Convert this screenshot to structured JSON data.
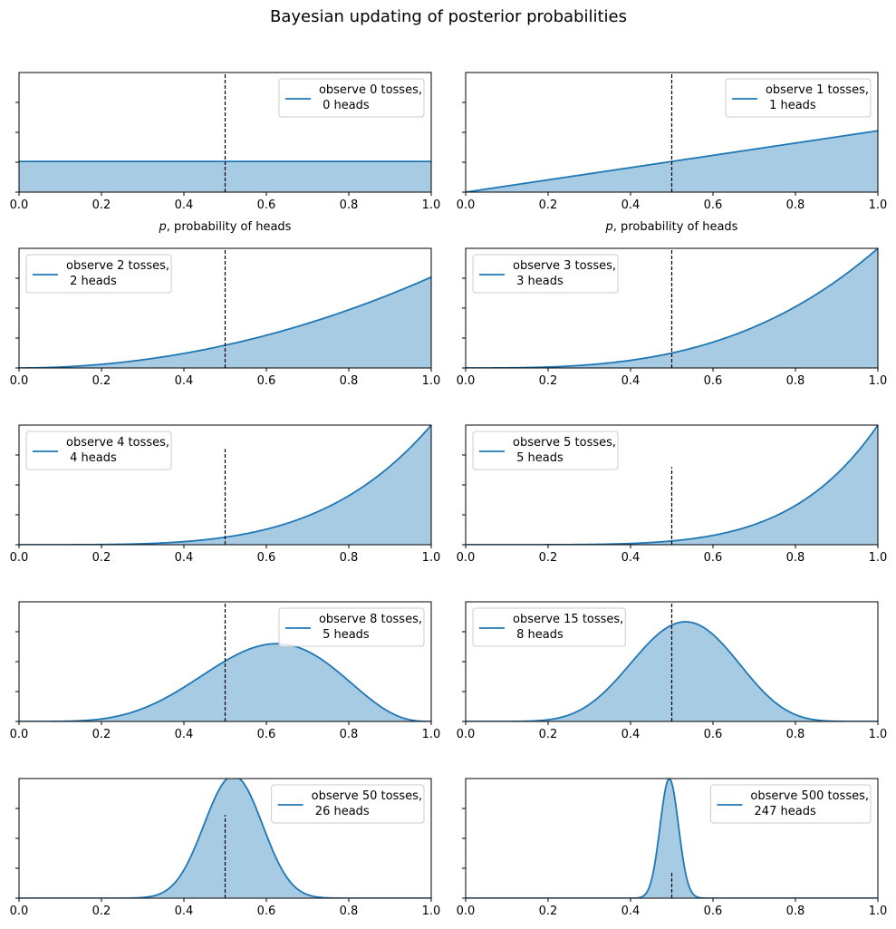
{
  "figure": {
    "title": "Bayesian updating of posterior probabilities"
  },
  "colors": {
    "line": "#1f77b4",
    "fill": "#a6cbe3",
    "vline": "#000000",
    "axes": "#000000",
    "legend_border": "#cccccc"
  },
  "chart_data": [
    {
      "type": "area",
      "trials": 0,
      "heads": 0,
      "legend": [
        "observe 0 tosses,",
        " 0 heads"
      ],
      "legend_loc": "upper right",
      "xlabel": "$p$, probability of heads",
      "xlim": [
        0,
        1
      ],
      "ylim": [
        0,
        3.9
      ],
      "vline_x": 0.5,
      "vline_top": 3.9,
      "xticks": [
        "0.0",
        "0.2",
        "0.4",
        "0.6",
        "0.8",
        "1.0"
      ],
      "ytick_labels": "hidden"
    },
    {
      "type": "area",
      "trials": 1,
      "heads": 1,
      "legend": [
        "observe 1 tosses,",
        " 1 heads"
      ],
      "legend_loc": "upper right",
      "xlabel": "$p$, probability of heads",
      "xlim": [
        0,
        1
      ],
      "ylim": [
        0,
        3.9
      ],
      "vline_x": 0.5,
      "vline_top": 3.9,
      "xticks": [
        "0.0",
        "0.2",
        "0.4",
        "0.6",
        "0.8",
        "1.0"
      ],
      "ytick_labels": "hidden"
    },
    {
      "type": "area",
      "trials": 2,
      "heads": 2,
      "legend": [
        "observe 2 tosses,",
        " 2 heads"
      ],
      "legend_loc": "upper left",
      "xlabel": "",
      "xlim": [
        0,
        1
      ],
      "ylim": [
        0,
        3.95
      ],
      "vline_x": 0.5,
      "vline_top": 3.95,
      "xticks": [
        "0.0",
        "0.2",
        "0.4",
        "0.6",
        "0.8",
        "1.0"
      ],
      "ytick_labels": "hidden"
    },
    {
      "type": "area",
      "trials": 3,
      "heads": 3,
      "legend": [
        "observe 3 tosses,",
        " 3 heads"
      ],
      "legend_loc": "upper left",
      "xlabel": "",
      "xlim": [
        0,
        1
      ],
      "ylim": [
        0,
        4.0
      ],
      "vline_x": 0.5,
      "vline_top": 4.0,
      "xticks": [
        "0.0",
        "0.2",
        "0.4",
        "0.6",
        "0.8",
        "1.0"
      ],
      "ytick_labels": "hidden"
    },
    {
      "type": "area",
      "trials": 4,
      "heads": 4,
      "legend": [
        "observe 4 tosses,",
        " 4 heads"
      ],
      "legend_loc": "upper left",
      "xlabel": "",
      "xlim": [
        0,
        1
      ],
      "ylim": [
        0,
        5.0
      ],
      "vline_x": 0.5,
      "vline_top": 4.0,
      "xticks": [
        "0.0",
        "0.2",
        "0.4",
        "0.6",
        "0.8",
        "1.0"
      ],
      "ytick_labels": "hidden"
    },
    {
      "type": "area",
      "trials": 5,
      "heads": 5,
      "legend": [
        "observe 5 tosses,",
        " 5 heads"
      ],
      "legend_loc": "upper left",
      "xlabel": "",
      "xlim": [
        0,
        1
      ],
      "ylim": [
        0,
        6.0
      ],
      "vline_x": 0.5,
      "vline_top": 3.9,
      "xticks": [
        "0.0",
        "0.2",
        "0.4",
        "0.6",
        "0.8",
        "1.0"
      ],
      "ytick_labels": "hidden"
    },
    {
      "type": "area",
      "trials": 8,
      "heads": 5,
      "legend": [
        "observe 8 tosses,",
        " 5 heads"
      ],
      "legend_loc": "upper right",
      "xlabel": "",
      "xlim": [
        0,
        1
      ],
      "ylim": [
        0,
        3.9
      ],
      "vline_x": 0.5,
      "vline_top": 3.9,
      "xticks": [
        "0.0",
        "0.2",
        "0.4",
        "0.6",
        "0.8",
        "1.0"
      ],
      "ytick_labels": "hidden"
    },
    {
      "type": "area",
      "trials": 15,
      "heads": 8,
      "legend": [
        "observe 15 tosses,",
        " 8 heads"
      ],
      "legend_loc": "upper left",
      "xlabel": "",
      "xlim": [
        0,
        1
      ],
      "ylim": [
        0,
        3.9
      ],
      "vline_x": 0.5,
      "vline_top": 3.9,
      "xticks": [
        "0.0",
        "0.2",
        "0.4",
        "0.6",
        "0.8",
        "1.0"
      ],
      "ytick_labels": "hidden"
    },
    {
      "type": "area",
      "trials": 50,
      "heads": 26,
      "legend": [
        "observe 50 tosses,",
        " 26 heads"
      ],
      "legend_loc": "upper right",
      "xlabel": "",
      "xlim": [
        0,
        1
      ],
      "ylim": [
        0,
        5.6
      ],
      "vline_x": 0.5,
      "vline_top": 3.9,
      "xticks": [
        "0.0",
        "0.2",
        "0.4",
        "0.6",
        "0.8",
        "1.0"
      ],
      "ytick_labels": "hidden"
    },
    {
      "type": "area",
      "trials": 500,
      "heads": 247,
      "legend": [
        "observe 500 tosses,",
        " 247 heads"
      ],
      "legend_loc": "upper right",
      "xlabel": "",
      "xlim": [
        0,
        1
      ],
      "ylim": [
        0,
        17.9
      ],
      "vline_x": 0.5,
      "vline_top": 3.9,
      "xticks": [
        "0.0",
        "0.2",
        "0.4",
        "0.6",
        "0.8",
        "1.0"
      ],
      "ytick_labels": "hidden"
    }
  ]
}
